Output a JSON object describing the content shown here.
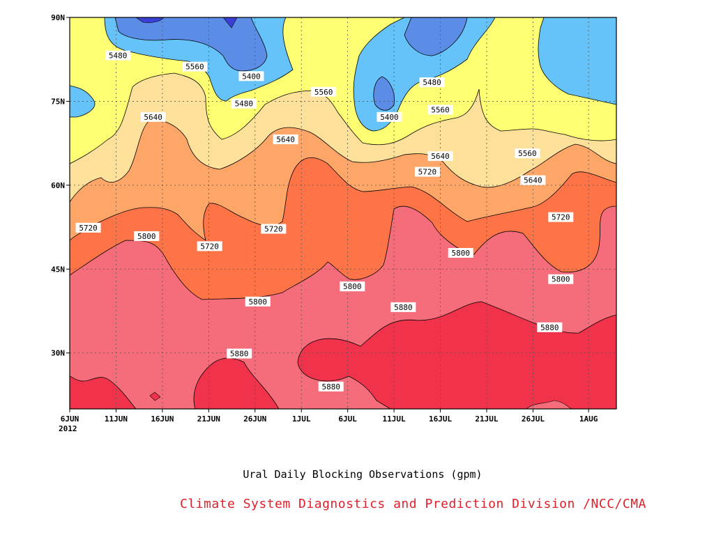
{
  "chart_data": {
    "type": "contour",
    "title": "Ural Daily Blocking Observations (gpm)",
    "credit": "Climate System Diagnostics and Prediction Division /NCC/CMA",
    "x_ticks": [
      "6JUN",
      "11JUN",
      "16JUN",
      "21JUN",
      "26JUN",
      "1JUL",
      "6JUL",
      "11JUL",
      "16JUL",
      "21JUL",
      "26JUL",
      "1AUG"
    ],
    "x_tick_days": [
      0,
      5,
      10,
      15,
      20,
      25,
      30,
      35,
      40,
      45,
      50,
      56
    ],
    "x_year_label": "2012",
    "xlim_days": [
      0,
      59
    ],
    "y_ticks": [
      "30N",
      "45N",
      "60N",
      "75N",
      "90N"
    ],
    "y_tick_values": [
      30,
      45,
      60,
      75,
      90
    ],
    "ylim": [
      20,
      90
    ],
    "grid": true,
    "contour_levels": [
      5320,
      5400,
      5480,
      5560,
      5640,
      5720,
      5800,
      5880
    ],
    "band_colors": [
      "#3a3fd6",
      "#5b8de6",
      "#66c3fa",
      "#ffff73",
      "#fde19b",
      "#fda668",
      "#fe7447",
      "#f56d7b",
      "#f0334b"
    ],
    "contour_labels": [
      {
        "value": "5480",
        "day": 5.2,
        "lat": 83.2
      },
      {
        "value": "5560",
        "day": 13.5,
        "lat": 81.2
      },
      {
        "value": "5400",
        "day": 19.6,
        "lat": 79.5
      },
      {
        "value": "5480",
        "day": 18.8,
        "lat": 74.6
      },
      {
        "value": "5560",
        "day": 27.4,
        "lat": 76.7
      },
      {
        "value": "5400",
        "day": 34.5,
        "lat": 72.2
      },
      {
        "value": "5480",
        "day": 39.1,
        "lat": 78.4
      },
      {
        "value": "5560",
        "day": 40.0,
        "lat": 73.5
      },
      {
        "value": "5640",
        "day": 9.0,
        "lat": 72.2
      },
      {
        "value": "5640",
        "day": 23.3,
        "lat": 68.2
      },
      {
        "value": "5640",
        "day": 40.0,
        "lat": 65.2
      },
      {
        "value": "5560",
        "day": 49.4,
        "lat": 65.7
      },
      {
        "value": "5720",
        "day": 38.6,
        "lat": 62.4
      },
      {
        "value": "5640",
        "day": 50.0,
        "lat": 60.9
      },
      {
        "value": "5720",
        "day": 2.0,
        "lat": 52.4
      },
      {
        "value": "5800",
        "day": 8.3,
        "lat": 50.9
      },
      {
        "value": "5720",
        "day": 15.1,
        "lat": 49.1
      },
      {
        "value": "5720",
        "day": 22.0,
        "lat": 52.2
      },
      {
        "value": "5720",
        "day": 53.0,
        "lat": 54.3
      },
      {
        "value": "5800",
        "day": 42.2,
        "lat": 47.9
      },
      {
        "value": "5800",
        "day": 30.5,
        "lat": 41.9
      },
      {
        "value": "5800",
        "day": 20.3,
        "lat": 39.2
      },
      {
        "value": "5800",
        "day": 53.0,
        "lat": 43.2
      },
      {
        "value": "5880",
        "day": 36.0,
        "lat": 38.2
      },
      {
        "value": "5880",
        "day": 51.8,
        "lat": 34.6
      },
      {
        "value": "5880",
        "day": 18.3,
        "lat": 29.9
      },
      {
        "value": "5880",
        "day": 28.2,
        "lat": 24.0
      }
    ]
  }
}
